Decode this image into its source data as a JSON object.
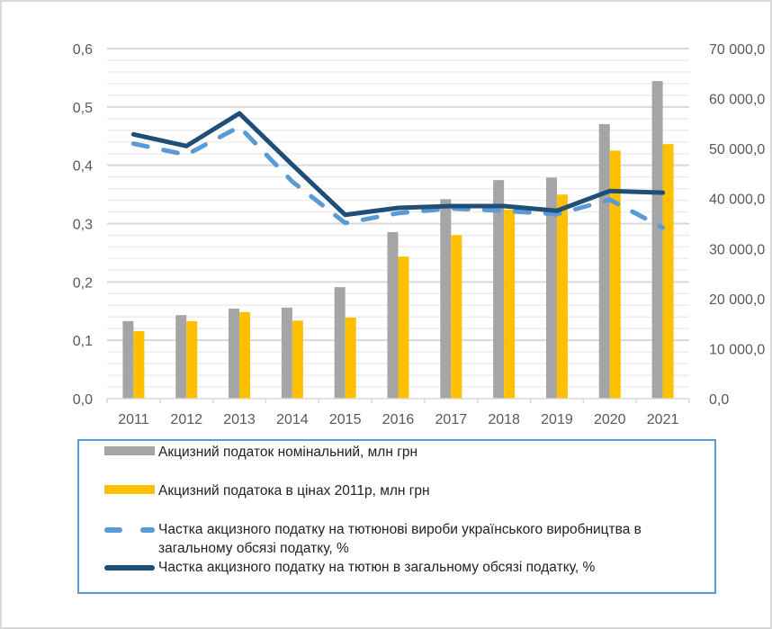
{
  "chart_data": {
    "type": "bar",
    "title": "",
    "categories": [
      "2011",
      "2012",
      "2013",
      "2014",
      "2015",
      "2016",
      "2017",
      "2018",
      "2019",
      "2020",
      "2021"
    ],
    "left_axis": {
      "label": "",
      "range": [
        0,
        0.6
      ],
      "ticks": [
        "0,0",
        "0,1",
        "0,2",
        "0,3",
        "0,4",
        "0,5",
        "0,6"
      ],
      "tick_values": [
        0,
        0.1,
        0.2,
        0.3,
        0.4,
        0.5,
        0.6
      ]
    },
    "right_axis": {
      "label": "",
      "range": [
        0,
        70000
      ],
      "ticks": [
        "0,0",
        "10 000,0",
        "20 000,0",
        "30 000,0",
        "40 000,0",
        "50 000,0",
        "60 000,0",
        "70 000,0"
      ],
      "tick_values": [
        0,
        10000,
        20000,
        30000,
        40000,
        50000,
        60000,
        70000
      ]
    },
    "grid": true,
    "legend_position": "bottom",
    "series": [
      {
        "name": "Акцизний податок номінальний, млн грн",
        "kind": "bar",
        "axis": "right",
        "color": "#a5a5a5",
        "values": [
          15500,
          16700,
          18000,
          18200,
          22300,
          33300,
          39900,
          43700,
          44200,
          54900,
          63500
        ]
      },
      {
        "name": "Акцизний податока в цінах 2011р, млн грн",
        "kind": "bar",
        "axis": "right",
        "color": "#ffc000",
        "values": [
          13500,
          15500,
          17300,
          15600,
          16200,
          28400,
          32700,
          37800,
          40800,
          49600,
          50900
        ]
      },
      {
        "name": "Частка акцизного податку на тютюнові вироби українського виробництва в загальному обсязі податку, %",
        "kind": "line-dashed",
        "axis": "left",
        "color": "#5b9bd5",
        "values": [
          0.437,
          0.418,
          0.466,
          0.372,
          0.301,
          0.318,
          0.326,
          0.322,
          0.316,
          0.341,
          0.293
        ]
      },
      {
        "name": "Частка акцизного податку на тютюн в загальному обсязі податку, %",
        "kind": "line",
        "axis": "left",
        "color": "#1f4e79",
        "values": [
          0.453,
          0.433,
          0.489,
          0.401,
          0.315,
          0.327,
          0.33,
          0.33,
          0.322,
          0.356,
          0.353
        ]
      }
    ]
  },
  "legend": {
    "items": [
      {
        "label": "Акцизний податок номінальний, млн грн"
      },
      {
        "label": "Акцизний податока в цінах 2011р, млн грн"
      },
      {
        "label": "Частка акцизного податку на тютюнові вироби українського виробництва в загальному обсязі податку, %"
      },
      {
        "label": "Частка акцизного податку на тютюн в загальному обсязі податку, %"
      }
    ]
  }
}
